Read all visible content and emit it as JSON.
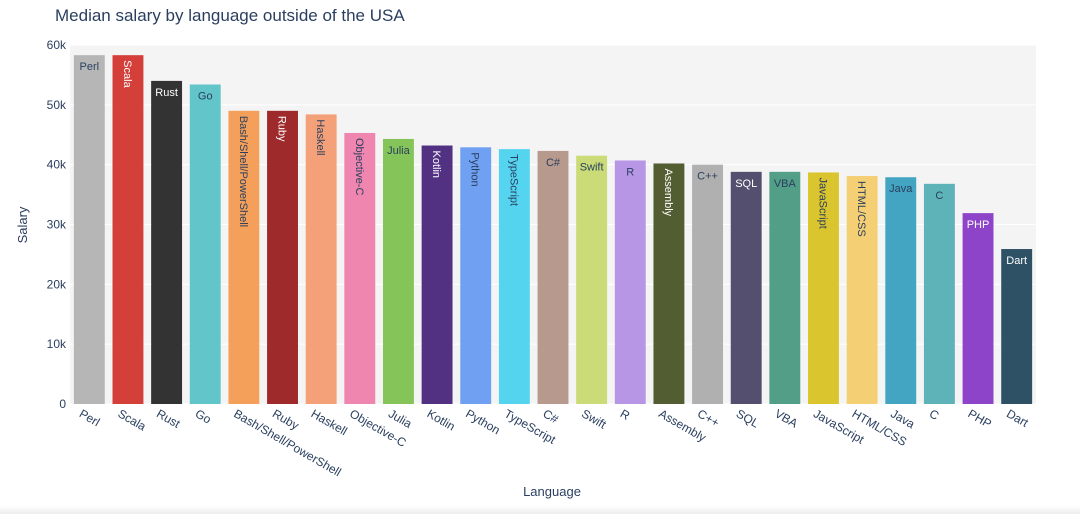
{
  "chart_data": {
    "type": "bar",
    "title": "Median salary by language outside of the USA",
    "xlabel": "Language",
    "ylabel": "Salary",
    "ylim": [
      0,
      60000
    ],
    "yticks": [
      0,
      10000,
      20000,
      30000,
      40000,
      50000,
      60000
    ],
    "ytick_labels": [
      "0",
      "10k",
      "20k",
      "30k",
      "40k",
      "50k",
      "60k"
    ],
    "grid": true,
    "categories": [
      "Perl",
      "Scala",
      "Rust",
      "Go",
      "Bash/Shell/PowerShell",
      "Ruby",
      "Haskell",
      "Objective-C",
      "Julia",
      "Kotlin",
      "Python",
      "TypeScript",
      "C#",
      "Swift",
      "R",
      "Assembly",
      "C++",
      "SQL",
      "VBA",
      "JavaScript",
      "HTML/CSS",
      "Java",
      "C",
      "PHP",
      "Dart"
    ],
    "values": [
      58300,
      58300,
      54000,
      53400,
      49000,
      49000,
      48400,
      45300,
      44300,
      43200,
      42900,
      42600,
      42300,
      41500,
      40700,
      40200,
      40000,
      38800,
      38800,
      38700,
      38100,
      37900,
      36800,
      31900,
      25900
    ],
    "colors": [
      "#b6b6b6",
      "#d43f3a",
      "#333333",
      "#61c5c9",
      "#f5a05a",
      "#9e2a2b",
      "#f4a078",
      "#ef86b0",
      "#85c459",
      "#523183",
      "#6fa0f1",
      "#55d4f0",
      "#b7998d",
      "#cadb77",
      "#b797e5",
      "#525e32",
      "#b0b0b0",
      "#544f6e",
      "#529e87",
      "#dbc52e",
      "#f5cf73",
      "#43a5c2",
      "#5eb3b9",
      "#8e44c9",
      "#2f5166"
    ],
    "label_orientation": [
      "horizontal",
      "vertical",
      "horizontal",
      "horizontal",
      "vertical",
      "vertical",
      "vertical",
      "vertical",
      "horizontal",
      "vertical",
      "vertical",
      "vertical",
      "horizontal",
      "horizontal",
      "horizontal",
      "vertical",
      "horizontal",
      "horizontal",
      "horizontal",
      "vertical",
      "vertical",
      "horizontal",
      "horizontal",
      "horizontal",
      "horizontal"
    ],
    "label_colors": [
      "#2a3f5f",
      "#ffffff",
      "#ffffff",
      "#2a3f5f",
      "#2a3f5f",
      "#ffffff",
      "#2a3f5f",
      "#2a3f5f",
      "#2a3f5f",
      "#ffffff",
      "#2a3f5f",
      "#2a3f5f",
      "#2a3f5f",
      "#2a3f5f",
      "#2a3f5f",
      "#ffffff",
      "#2a3f5f",
      "#ffffff",
      "#2a3f5f",
      "#2a3f5f",
      "#2a3f5f",
      "#2a3f5f",
      "#2a3f5f",
      "#ffffff",
      "#ffffff"
    ]
  }
}
